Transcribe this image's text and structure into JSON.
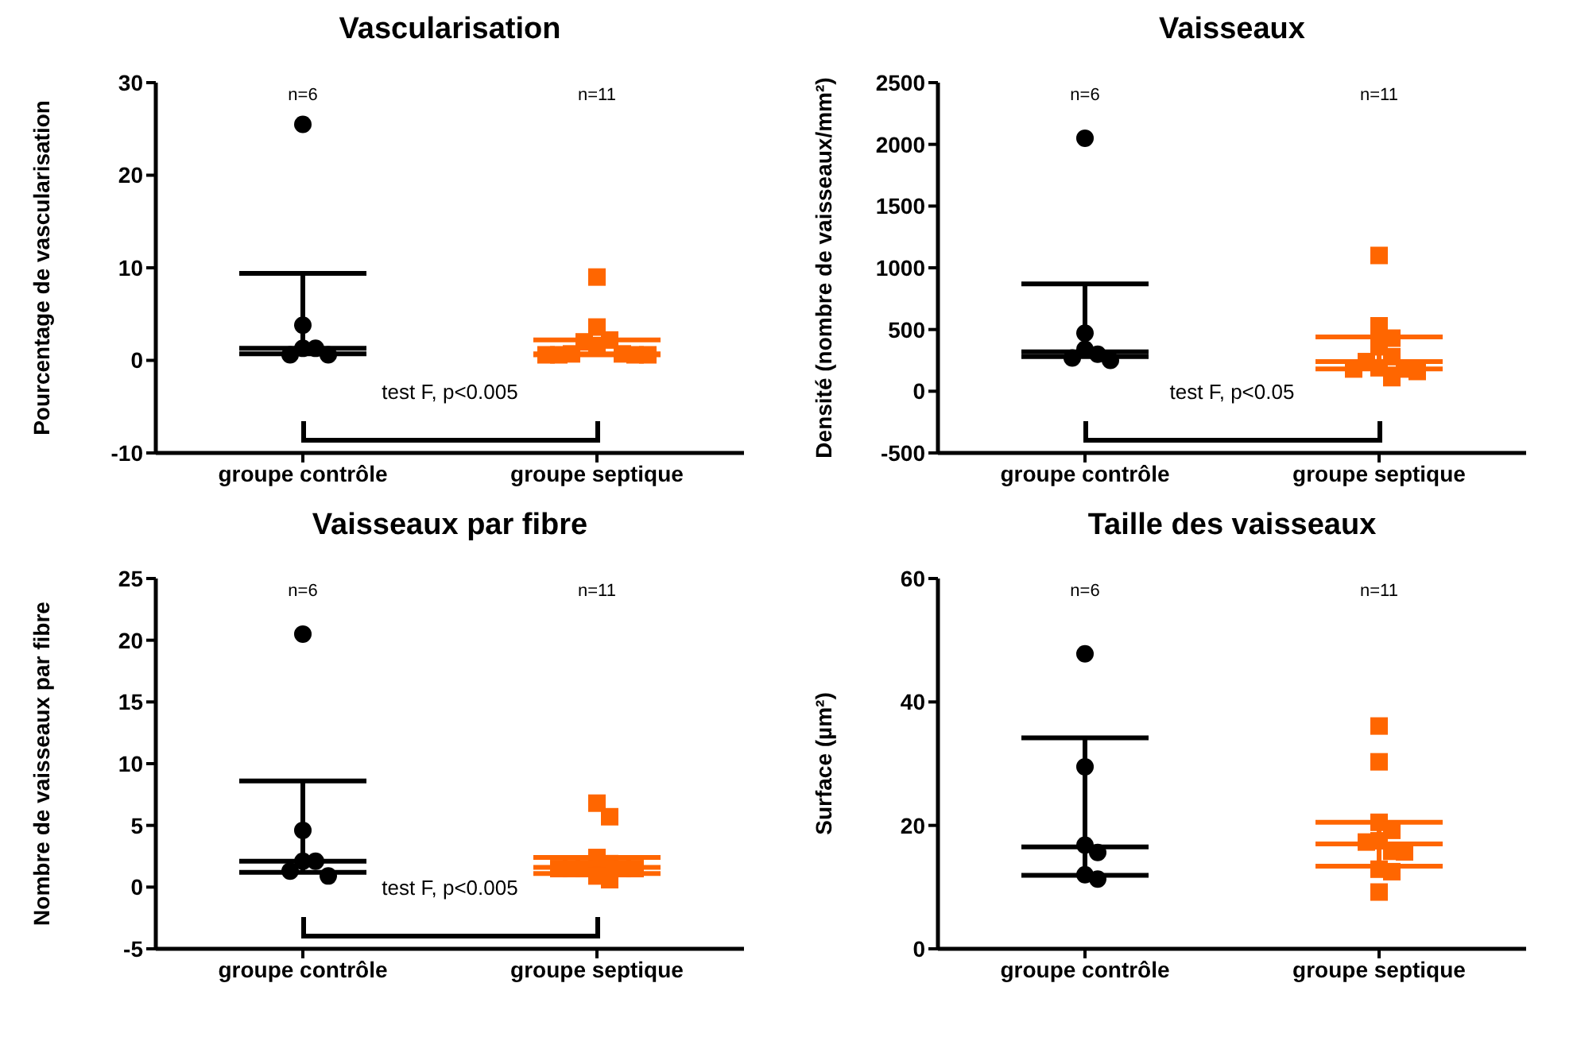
{
  "chart_data": [
    {
      "type": "scatter",
      "title": "Vascularisation",
      "ylabel": "Pourcentage de vascularisation",
      "categories": [
        "groupe contrôle",
        "groupe septique"
      ],
      "ylim": [
        -10,
        30
      ],
      "yticks": [
        -10,
        0,
        10,
        20,
        30
      ],
      "grid": false,
      "legend": false,
      "series": [
        {
          "type": "box",
          "color": "#000000",
          "boxes": [
            {
              "low": 0.7,
              "q1": 0.7,
              "median": 1.3,
              "q3": 9.4,
              "high": 9.4
            },
            null
          ]
        },
        {
          "type": "box",
          "color": "#ff6600",
          "boxes": [
            null,
            {
              "low": 0.6,
              "q1": 0.6,
              "median": 0.7,
              "q3": 2.2,
              "high": 2.2
            }
          ]
        },
        {
          "color": "#000000",
          "marker": "circle",
          "x": [
            "groupe contrôle",
            "groupe contrôle",
            "groupe contrôle",
            "groupe contrôle",
            "groupe contrôle",
            "groupe contrôle"
          ],
          "values": [
            25.5,
            3.8,
            1.3,
            1.3,
            0.6,
            0.6
          ]
        },
        {
          "color": "#ff6600",
          "marker": "square",
          "x": [
            "groupe septique",
            "groupe septique",
            "groupe septique",
            "groupe septique",
            "groupe septique",
            "groupe septique",
            "groupe septique",
            "groupe septique",
            "groupe septique",
            "groupe septique",
            "groupe septique"
          ],
          "values": [
            9.0,
            3.6,
            2.2,
            2.0,
            1.6,
            0.7,
            0.7,
            0.6,
            0.6,
            0.6,
            0.6
          ]
        }
      ],
      "annotations": [
        "n=6",
        "n=11",
        "test F, p<0.005"
      ]
    },
    {
      "type": "scatter",
      "title": "Vaisseaux",
      "ylabel": "Densité (nombre de vaisseaux/mm²)",
      "categories": [
        "groupe contrôle",
        "groupe septique"
      ],
      "ylim": [
        -500,
        2500
      ],
      "yticks": [
        -500,
        0,
        500,
        1000,
        1500,
        2000,
        2500
      ],
      "grid": false,
      "legend": false,
      "series": [
        {
          "type": "box",
          "color": "#000000",
          "boxes": [
            {
              "low": 280,
              "q1": 280,
              "median": 320,
              "q3": 870,
              "high": 870
            },
            null
          ]
        },
        {
          "type": "box",
          "color": "#ff6600",
          "boxes": [
            null,
            {
              "low": 180,
              "q1": 180,
              "median": 240,
              "q3": 440,
              "high": 440
            }
          ]
        },
        {
          "color": "#000000",
          "marker": "circle",
          "x": [
            "groupe contrôle",
            "groupe contrôle",
            "groupe contrôle",
            "groupe contrôle",
            "groupe contrôle",
            "groupe contrôle"
          ],
          "values": [
            2050,
            470,
            340,
            300,
            270,
            250
          ]
        },
        {
          "color": "#ff6600",
          "marker": "square",
          "x": [
            "groupe septique",
            "groupe septique",
            "groupe septique",
            "groupe septique",
            "groupe septique",
            "groupe septique",
            "groupe septique",
            "groupe septique",
            "groupe septique",
            "groupe septique",
            "groupe septique"
          ],
          "values": [
            1100,
            530,
            430,
            360,
            280,
            240,
            190,
            180,
            180,
            160,
            110
          ]
        }
      ],
      "annotations": [
        "n=6",
        "n=11",
        "test F, p<0.05"
      ]
    },
    {
      "type": "scatter",
      "title": "Vaisseaux par fibre",
      "ylabel": "Nombre de vaisseaux par fibre",
      "categories": [
        "groupe contrôle",
        "groupe septique"
      ],
      "ylim": [
        -5,
        25
      ],
      "yticks": [
        -5,
        0,
        5,
        10,
        15,
        20,
        25
      ],
      "grid": false,
      "legend": false,
      "series": [
        {
          "type": "box",
          "color": "#000000",
          "boxes": [
            {
              "low": 1.2,
              "q1": 1.2,
              "median": 2.1,
              "q3": 8.6,
              "high": 8.6
            },
            null
          ]
        },
        {
          "type": "box",
          "color": "#ff6600",
          "boxes": [
            null,
            {
              "low": 1.1,
              "q1": 1.1,
              "median": 1.6,
              "q3": 2.4,
              "high": 2.4
            }
          ]
        },
        {
          "color": "#000000",
          "marker": "circle",
          "x": [
            "groupe contrôle",
            "groupe contrôle",
            "groupe contrôle",
            "groupe contrôle",
            "groupe contrôle",
            "groupe contrôle"
          ],
          "values": [
            20.5,
            4.6,
            2.1,
            2.1,
            1.3,
            0.9
          ]
        },
        {
          "color": "#ff6600",
          "marker": "square",
          "x": [
            "groupe septique",
            "groupe septique",
            "groupe septique",
            "groupe septique",
            "groupe septique",
            "groupe septique",
            "groupe septique",
            "groupe septique",
            "groupe septique",
            "groupe septique",
            "groupe septique"
          ],
          "values": [
            6.8,
            5.7,
            2.4,
            1.9,
            1.5,
            1.5,
            1.5,
            1.5,
            1.5,
            0.9,
            0.6
          ]
        }
      ],
      "annotations": [
        "n=6",
        "n=11",
        "test F, p<0.005"
      ]
    },
    {
      "type": "scatter",
      "title": "Taille des vaisseaux",
      "ylabel": "Surface (µm²)",
      "categories": [
        "groupe contrôle",
        "groupe septique"
      ],
      "ylim": [
        0,
        60
      ],
      "yticks": [
        0,
        20,
        40,
        60
      ],
      "grid": false,
      "legend": false,
      "series": [
        {
          "type": "box",
          "color": "#000000",
          "boxes": [
            {
              "low": 11.9,
              "q1": 11.9,
              "median": 16.5,
              "q3": 34.2,
              "high": 34.2
            },
            null
          ]
        },
        {
          "type": "box",
          "color": "#ff6600",
          "boxes": [
            null,
            {
              "low": 13.4,
              "q1": 13.4,
              "median": 17.0,
              "q3": 20.5,
              "high": 20.5
            }
          ]
        },
        {
          "color": "#000000",
          "marker": "circle",
          "x": [
            "groupe contrôle",
            "groupe contrôle",
            "groupe contrôle",
            "groupe contrôle",
            "groupe contrôle",
            "groupe contrôle"
          ],
          "values": [
            47.8,
            29.5,
            16.8,
            15.6,
            12.0,
            11.3
          ]
        },
        {
          "color": "#ff6600",
          "marker": "square",
          "x": [
            "groupe septique",
            "groupe septique",
            "groupe septique",
            "groupe septique",
            "groupe septique",
            "groupe septique",
            "groupe septique",
            "groupe septique",
            "groupe septique",
            "groupe septique",
            "groupe septique"
          ],
          "values": [
            36.1,
            30.3,
            20.5,
            19.2,
            17.5,
            17.3,
            15.8,
            15.7,
            12.9,
            12.5,
            9.2
          ]
        }
      ],
      "annotations": [
        "n=6",
        "n=11"
      ]
    }
  ]
}
